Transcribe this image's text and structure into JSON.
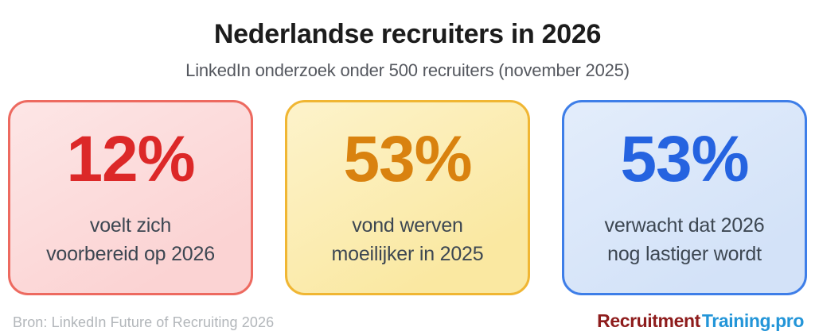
{
  "header": {
    "title": "Nederlandse recruiters in 2026",
    "subtitle": "LinkedIn onderzoek onder 500 recruiters (november 2025)"
  },
  "chart_data": {
    "type": "table",
    "title": "Nederlandse recruiters in 2026",
    "subtitle": "LinkedIn onderzoek onder 500 recruiters (november 2025)",
    "categories": [
      "voelt zich voorbereid op 2026",
      "vond werven moeilijker in 2025",
      "verwacht dat 2026 nog lastiger wordt"
    ],
    "values": [
      12,
      53,
      53
    ],
    "unit": "%",
    "source": "Bron: LinkedIn Future of Recruiting 2026"
  },
  "cards": [
    {
      "value": "12%",
      "label_line1": "voelt zich",
      "label_line2": "voorbereid op 2026",
      "value_color": "#dc2828",
      "border_color": "#ed6a60",
      "background_color": "#fbd6d6"
    },
    {
      "value": "53%",
      "label_line1": "vond werven",
      "label_line2": "moeilijker in 2025",
      "value_color": "#d9820f",
      "border_color": "#f0b633",
      "background_color": "#fbeaa8"
    },
    {
      "value": "53%",
      "label_line1": "verwacht dat 2026",
      "label_line2": "nog lastiger wordt",
      "value_color": "#2563e0",
      "border_color": "#3e7ee8",
      "background_color": "#d8e5f9"
    }
  ],
  "footer": {
    "source": "Bron: LinkedIn Future of Recruiting 2026",
    "logo": {
      "part1": "Recruitment",
      "part2": "Training.pro",
      "part1_color": "#8e1c1c",
      "part2_color": "#2395d8"
    }
  }
}
